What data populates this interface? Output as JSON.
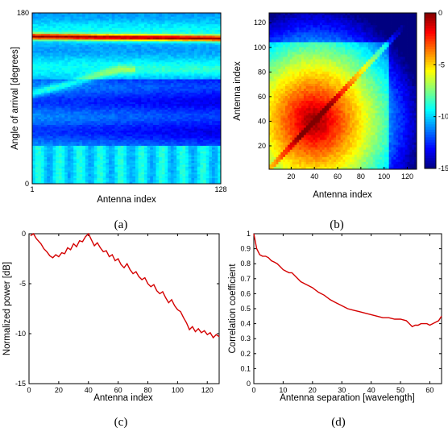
{
  "chart_data": [
    {
      "panel": "(a)",
      "type": "heatmap",
      "title": "",
      "xlabel": "Antenna index",
      "ylabel": "Angle of arrival [degrees]",
      "xlim": [
        1,
        128
      ],
      "ylim": [
        0,
        180
      ],
      "x_ticks": [
        "1",
        "128"
      ],
      "y_ticks": [
        "0",
        "180"
      ],
      "colormap": "jet",
      "features": [
        {
          "description_value": "strong band",
          "angle_deg": 155,
          "level": 1.0
        },
        {
          "description_value": "weak rising ray",
          "angle_start_deg": 95,
          "angle_end_deg": 120,
          "level": 0.45
        }
      ],
      "caption": "(a)"
    },
    {
      "panel": "(b)",
      "type": "heatmap",
      "title": "",
      "xlabel": "Antenna index",
      "ylabel": "Antenna index",
      "xlim": [
        1,
        128
      ],
      "ylim": [
        1,
        128
      ],
      "x_ticks": [
        20,
        40,
        60,
        80,
        100,
        120
      ],
      "y_ticks": [
        20,
        40,
        60,
        80,
        100,
        120
      ],
      "colormap": "jet",
      "clim": [
        -15,
        0
      ],
      "colorbar_ticks": [
        0,
        -5,
        -10,
        -15
      ],
      "peak_center": [
        40,
        40
      ],
      "caption": "(b)"
    },
    {
      "panel": "(c)",
      "type": "line",
      "title": "",
      "xlabel": "Antenna index",
      "ylabel": "Normalized power [dB]",
      "xlim": [
        0,
        128
      ],
      "ylim": [
        -15,
        0
      ],
      "x_ticks": [
        0,
        20,
        40,
        60,
        80,
        100,
        120
      ],
      "y_ticks": [
        -15,
        -10,
        -5,
        0
      ],
      "grid": false,
      "series": [
        {
          "color": "#d40000",
          "x": [
            1,
            3,
            5,
            8,
            10,
            12,
            14,
            16,
            18,
            20,
            22,
            24,
            26,
            28,
            30,
            32,
            34,
            36,
            38,
            40,
            42,
            44,
            46,
            48,
            50,
            52,
            54,
            56,
            58,
            60,
            62,
            64,
            66,
            68,
            70,
            72,
            74,
            76,
            78,
            80,
            82,
            84,
            86,
            88,
            90,
            92,
            94,
            96,
            98,
            100,
            102,
            104,
            106,
            108,
            110,
            112,
            114,
            116,
            118,
            120,
            122,
            124,
            126,
            128
          ],
          "y": [
            -0.2,
            0.0,
            -0.5,
            -1.0,
            -1.5,
            -1.8,
            -2.2,
            -2.4,
            -2.1,
            -2.3,
            -1.9,
            -2.0,
            -1.4,
            -1.6,
            -1.0,
            -1.3,
            -0.7,
            -0.8,
            -0.3,
            0.0,
            -0.6,
            -1.2,
            -0.9,
            -1.4,
            -1.8,
            -1.7,
            -2.3,
            -2.1,
            -2.7,
            -2.5,
            -3.1,
            -3.4,
            -3.0,
            -3.6,
            -4.0,
            -3.8,
            -4.3,
            -4.6,
            -4.4,
            -5.0,
            -5.3,
            -5.1,
            -5.7,
            -6.0,
            -5.8,
            -6.4,
            -6.9,
            -6.6,
            -7.2,
            -7.6,
            -7.8,
            -8.4,
            -8.9,
            -9.6,
            -9.3,
            -9.8,
            -9.5,
            -9.9,
            -9.7,
            -10.1,
            -9.9,
            -10.4,
            -10.1,
            -10.3
          ]
        }
      ],
      "caption": "(c)"
    },
    {
      "panel": "(d)",
      "type": "line",
      "title": "",
      "xlabel": "Antenna separation [wavelength]",
      "ylabel": "Correlation coefficient",
      "xlim": [
        0,
        64
      ],
      "ylim": [
        0,
        1
      ],
      "x_ticks": [
        0,
        10,
        20,
        30,
        40,
        50,
        60
      ],
      "y_ticks": [
        0,
        0.1,
        0.2,
        0.3,
        0.4,
        0.5,
        0.6,
        0.7,
        0.8,
        0.9,
        1
      ],
      "grid": false,
      "series": [
        {
          "color": "#d40000",
          "x": [
            0,
            0.5,
            1,
            2,
            3,
            4,
            5,
            6,
            7,
            8,
            9,
            10,
            11,
            12,
            13,
            14,
            15,
            16,
            17,
            18,
            19,
            20,
            22,
            24,
            26,
            28,
            30,
            32,
            34,
            36,
            38,
            40,
            42,
            44,
            46,
            48,
            50,
            52,
            53,
            54,
            55,
            56,
            57,
            58,
            59,
            60,
            61,
            62,
            63,
            64
          ],
          "y": [
            1.0,
            0.95,
            0.9,
            0.86,
            0.85,
            0.85,
            0.84,
            0.82,
            0.81,
            0.8,
            0.78,
            0.76,
            0.75,
            0.74,
            0.74,
            0.72,
            0.7,
            0.68,
            0.67,
            0.66,
            0.65,
            0.64,
            0.61,
            0.59,
            0.56,
            0.54,
            0.52,
            0.5,
            0.49,
            0.48,
            0.47,
            0.46,
            0.45,
            0.44,
            0.44,
            0.43,
            0.43,
            0.42,
            0.4,
            0.38,
            0.39,
            0.39,
            0.4,
            0.4,
            0.4,
            0.39,
            0.4,
            0.41,
            0.42,
            0.45
          ]
        }
      ],
      "caption": "(d)"
    }
  ]
}
